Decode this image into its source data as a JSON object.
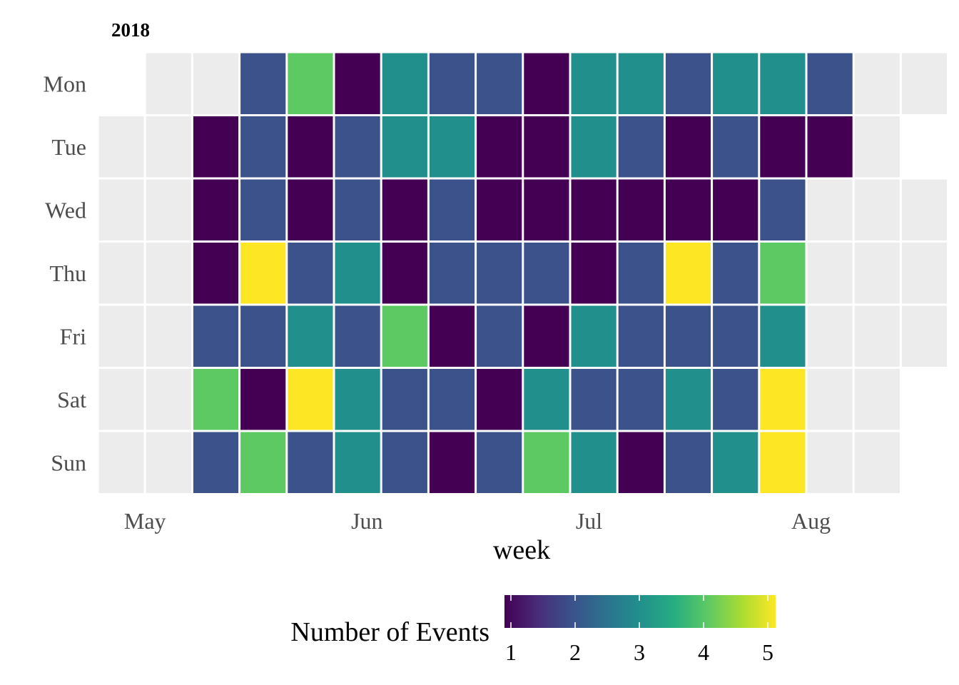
{
  "chart_data": {
    "type": "heatmap",
    "title": "2018",
    "xlabel": "week",
    "ylabel": "",
    "days": [
      "Mon",
      "Tue",
      "Wed",
      "Thu",
      "Fri",
      "Sat",
      "Sun"
    ],
    "month_labels": [
      {
        "label": "May",
        "week_index": 1
      },
      {
        "label": "Jun",
        "week_index": 5.7
      },
      {
        "label": "Jul",
        "week_index": 10.4
      },
      {
        "label": "Aug",
        "week_index": 15.1
      }
    ],
    "values": [
      [
        null,
        0,
        0,
        2,
        4,
        1,
        3,
        2,
        2,
        1,
        3,
        3,
        2,
        3,
        3,
        2,
        0,
        0
      ],
      [
        0,
        0,
        1,
        2,
        1,
        2,
        3,
        3,
        1,
        1,
        3,
        2,
        1,
        2,
        1,
        1,
        0,
        null
      ],
      [
        0,
        0,
        1,
        2,
        1,
        2,
        1,
        2,
        1,
        1,
        1,
        1,
        1,
        1,
        2,
        0,
        0,
        0
      ],
      [
        0,
        0,
        1,
        5,
        2,
        3,
        1,
        2,
        2,
        2,
        1,
        2,
        5,
        2,
        4,
        0,
        0,
        0
      ],
      [
        0,
        0,
        2,
        2,
        3,
        2,
        4,
        1,
        2,
        1,
        3,
        2,
        2,
        2,
        3,
        0,
        0,
        0
      ],
      [
        0,
        0,
        4,
        1,
        5,
        3,
        2,
        2,
        1,
        3,
        2,
        2,
        3,
        2,
        5,
        0,
        0,
        null
      ],
      [
        0,
        0,
        2,
        4,
        2,
        3,
        2,
        1,
        2,
        4,
        3,
        1,
        2,
        3,
        5,
        0,
        0,
        null
      ]
    ],
    "empty_color": "#ececec",
    "colorscale": [
      "#440154",
      "#3b528b",
      "#21908c",
      "#5dc963",
      "#fde725"
    ],
    "legend": {
      "title": "Number of Events",
      "min": 1,
      "max": 5,
      "ticks": [
        1,
        2,
        3,
        4,
        5
      ],
      "placement": "bottom"
    }
  }
}
